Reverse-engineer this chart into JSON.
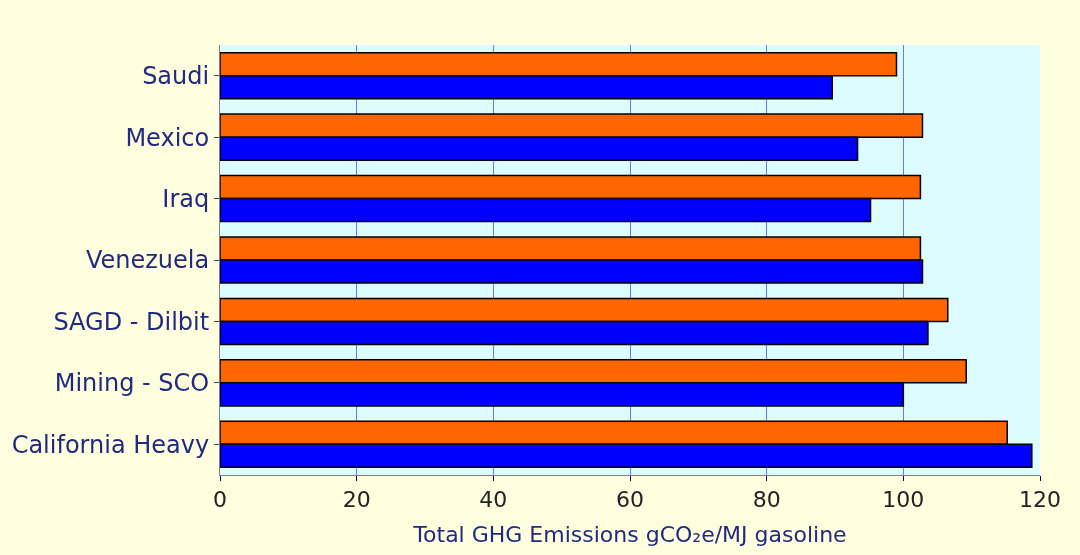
{
  "chart_data": {
    "type": "bar",
    "orientation": "horizontal",
    "xlabel": "Total GHG Emissions gCO₂e/MJ gasoline",
    "categories": [
      "Saudi",
      "Mexico",
      "Iraq",
      "Venezuela",
      "SAGD - Dilbit",
      "Mining - SCO",
      "California Heavy"
    ],
    "series": [
      {
        "color": "#ff6600",
        "values": [
          99,
          102.8,
          102.5,
          102.5,
          106.5,
          109.2,
          115.2
        ]
      },
      {
        "color": "#0000ff",
        "values": [
          89.6,
          93.3,
          95.2,
          102.8,
          103.6,
          100,
          118.8
        ]
      }
    ],
    "xlim": [
      0,
      120
    ],
    "xticks": [
      0,
      20,
      40,
      60,
      80,
      100,
      120
    ],
    "grid": "x"
  }
}
